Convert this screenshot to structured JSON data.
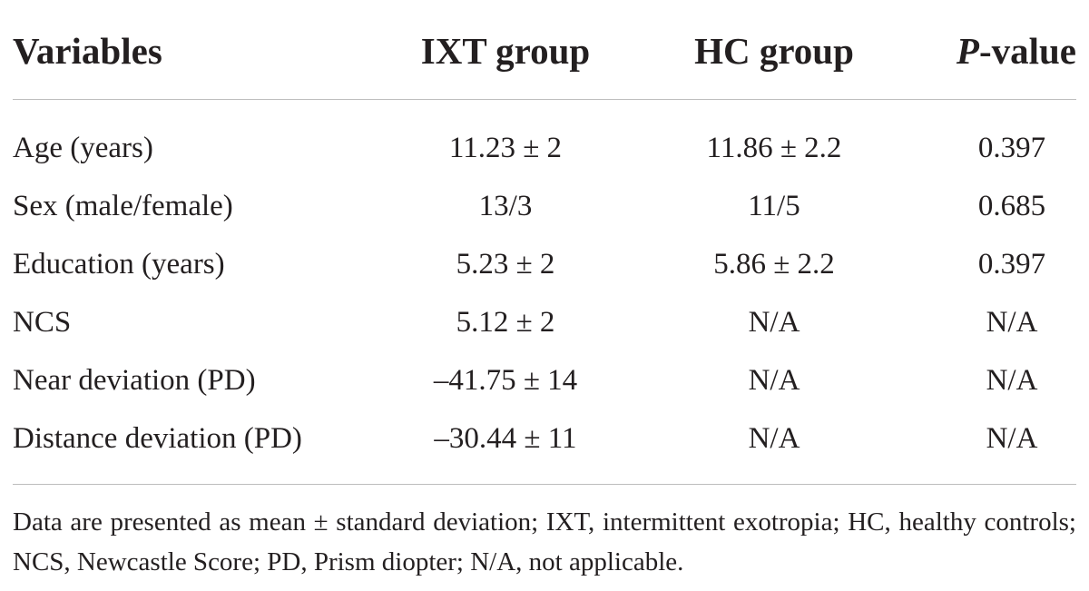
{
  "table": {
    "headers": {
      "variables": "Variables",
      "ixt_group": "IXT group",
      "hc_group": "HC group",
      "p_value_italic": "P",
      "p_value_rest": "-value"
    },
    "rows": [
      {
        "label": "Age (years)",
        "ixt": "11.23 ± 2",
        "hc": "11.86 ± 2.2",
        "p": "0.397"
      },
      {
        "label": "Sex (male/female)",
        "ixt": "13/3",
        "hc": "11/5",
        "p": "0.685"
      },
      {
        "label": "Education (years)",
        "ixt": "5.23 ± 2",
        "hc": "5.86 ± 2.2",
        "p": "0.397"
      },
      {
        "label": "NCS",
        "ixt": "5.12 ± 2",
        "hc": "N/A",
        "p": "N/A"
      },
      {
        "label": "Near deviation (PD)",
        "ixt": "–41.75 ± 14",
        "hc": "N/A",
        "p": "N/A"
      },
      {
        "label": "Distance deviation (PD)",
        "ixt": "–30.44 ± 11",
        "hc": "N/A",
        "p": "N/A"
      }
    ],
    "footnote": "Data are presented as mean ± standard deviation; IXT, intermittent exotropia; HC, healthy controls; NCS, Newcastle Score; PD, Prism diopter; N/A, not applicable."
  }
}
